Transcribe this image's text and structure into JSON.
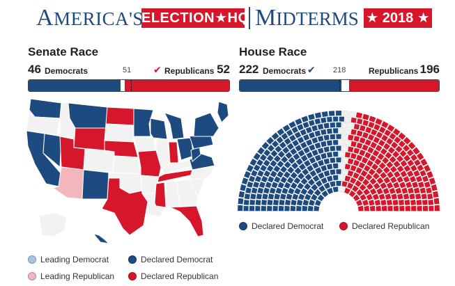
{
  "header": {
    "brand_a_cap": "A",
    "brand_a_rest": "MERICA'S",
    "brand_box": "ELECTION★HQ",
    "brand_b_cap": "M",
    "brand_b_rest": "IDTERMS",
    "brand_year": "★ 2018 ★"
  },
  "senate": {
    "title": "Senate Race",
    "dem_count": 46,
    "dem_label": "Democrats",
    "threshold": 51,
    "rep_label": "Republicans",
    "rep_count": 52,
    "total": 100,
    "winner": "Republicans",
    "check_icon": "checkmark-icon"
  },
  "house": {
    "title": "House Race",
    "dem_count": 222,
    "dem_label": "Democrats",
    "threshold": 218,
    "rep_label": "Republicans",
    "rep_count": 196,
    "total": 435,
    "winner": "Democrats",
    "check_icon": "checkmark-icon"
  },
  "colors": {
    "declared_dem": "#1d4a7f",
    "declared_rep": "#d6172b",
    "leading_dem": "#a9c4e4",
    "leading_rep": "#f4b6bd",
    "undecided": "#f2f2f2"
  },
  "map_states": {
    "WA": "D",
    "OR": "U",
    "CA": "D",
    "NV": "D",
    "ID": "U",
    "MT": "D",
    "WY": "R",
    "UT": "R",
    "AZ": "LR",
    "NM": "D",
    "CO": "U",
    "ND": "R",
    "SD": "U",
    "NE": "R",
    "KS": "U",
    "OK": "U",
    "TX": "R",
    "MN": "D",
    "IA": "U",
    "MO": "R",
    "AR": "U",
    "LA": "U",
    "WI": "D",
    "IL": "U",
    "IN": "R",
    "MI": "D",
    "OH": "D",
    "KY": "U",
    "TN": "R",
    "MS": "R",
    "AL": "U",
    "GA": "U",
    "FL": "R",
    "SC": "U",
    "NC": "U",
    "VA": "D",
    "WV": "D",
    "PA": "D",
    "NY": "D",
    "ME": "D",
    "AK": "U",
    "HI": "D"
  },
  "senate_legend": [
    {
      "label": "Leading Democrat",
      "color": "#a9c4e4"
    },
    {
      "label": "Declared Democrat",
      "color": "#1d4a7f"
    },
    {
      "label": "Leading Republican",
      "color": "#f4b6bd"
    },
    {
      "label": "Declared Republican",
      "color": "#d6172b"
    }
  ],
  "house_legend": [
    {
      "label": "Declared Democrat",
      "color": "#1d4a7f"
    },
    {
      "label": "Declared Republican",
      "color": "#d6172b"
    }
  ]
}
